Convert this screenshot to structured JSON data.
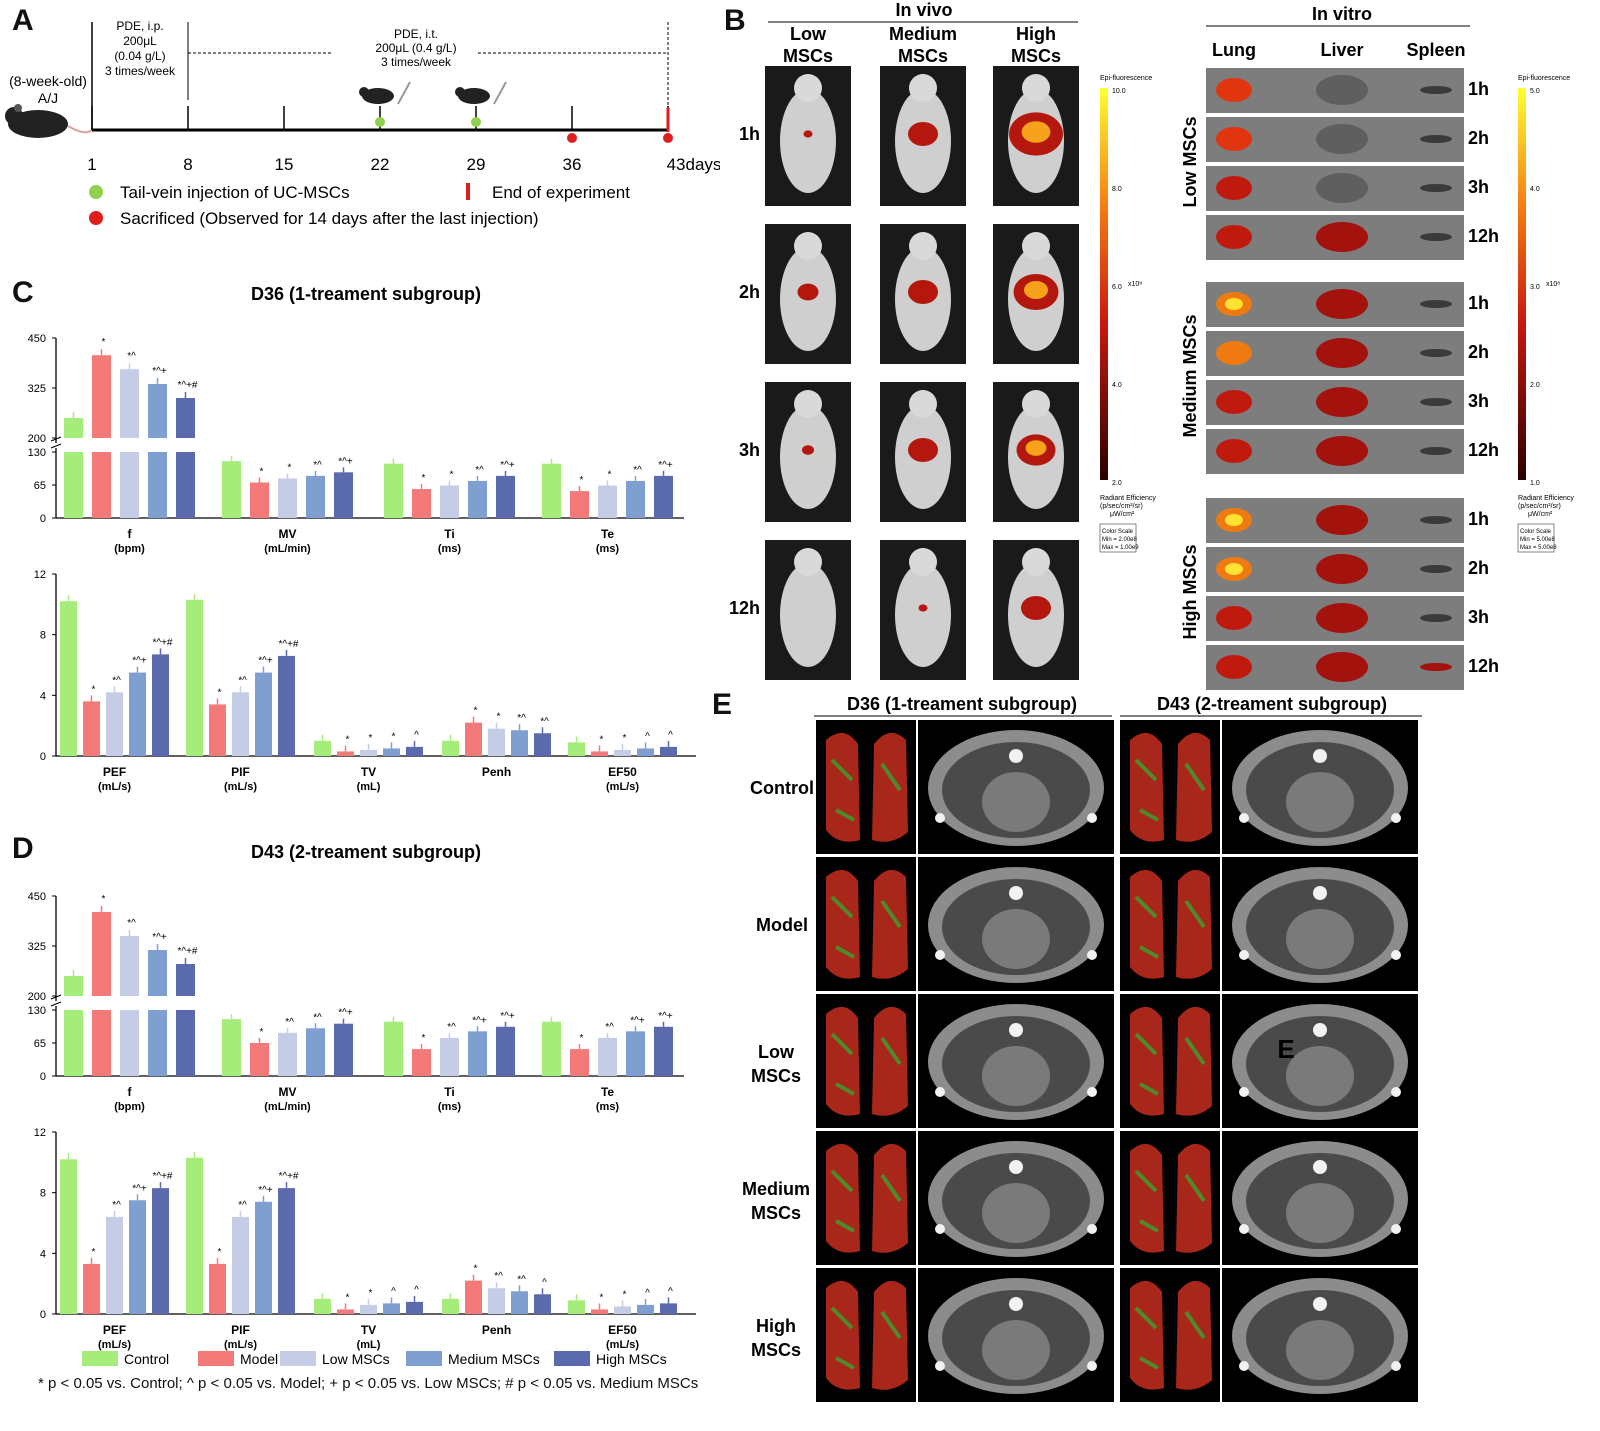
{
  "panels": {
    "a": "A",
    "b": "B",
    "c": "C",
    "d": "D",
    "e": "E"
  },
  "timeline": {
    "mouse_label_1": "(8-week-old)",
    "mouse_label_2": "A/J",
    "pde_ip_1": "PDE, i.p.",
    "pde_ip_2": "200μL",
    "pde_ip_3": "(0.04 g/L)",
    "pde_ip_4": "3 times/week",
    "pde_it_1": "PDE, i.t.",
    "pde_it_2": "200μL (0.4 g/L)",
    "pde_it_3": "3 times/week",
    "days": [
      "1",
      "8",
      "15",
      "22",
      "29",
      "36",
      "43"
    ],
    "days_suffix": "days",
    "legend_green": "Tail-vein injection of UC-MSCs",
    "legend_end": "End of experiment",
    "legend_red": "Sacrificed (Observed for 14 days after the last injection)"
  },
  "imaging": {
    "invivo_title": "In vivo",
    "invitro_title": "In vitro",
    "invivo_cols": [
      [
        "Low",
        "MSCs"
      ],
      [
        "Medium",
        "MSCs"
      ],
      [
        "High",
        "MSCs"
      ]
    ],
    "times": [
      "1h",
      "2h",
      "3h",
      "12h"
    ],
    "organs": [
      "Lung",
      "Liver",
      "Spleen"
    ],
    "groups": [
      "Low MSCs",
      "Medium MSCs",
      "High MSCs"
    ],
    "invivo_scale": {
      "title": "Epi-fluorescence",
      "ticks": [
        "10.0",
        "8.0",
        "6.0",
        "4.0",
        "2.0"
      ],
      "exp": "x10⁸",
      "unit_1": "Radiant Efficiency",
      "unit_2": "(p/sec/cm²/sr)",
      "unit_3": "μW/cm²",
      "box_1": "Color Scale",
      "box_2": "Min = 2.00e8",
      "box_3": "Max = 1.00e9"
    },
    "invitro_scale": {
      "title": "Epi-fluorescence",
      "ticks": [
        "5.0",
        "4.0",
        "3.0",
        "2.0",
        "1.0"
      ],
      "exp": "x10⁸",
      "unit_1": "Radiant Efficiency",
      "unit_2": "(p/sec/cm²/sr)",
      "unit_3": "μW/cm²",
      "box_1": "Color Scale",
      "box_2": "Min = 5.00e8",
      "box_3": "Max = 5.00e8"
    }
  },
  "ct": {
    "col_titles": [
      "D36 (1-treament subgroup)",
      "D43 (2-treament subgroup)"
    ],
    "rows": [
      [
        "Control"
      ],
      [
        "Model"
      ],
      [
        "Low",
        "MSCs"
      ],
      [
        "Medium",
        "MSCs"
      ],
      [
        "High",
        "MSCs"
      ]
    ],
    "overlay_letter": "E"
  },
  "legend": {
    "items": [
      "Control",
      "Model",
      "Low MSCs",
      "Medium MSCs",
      "High MSCs"
    ],
    "colors": [
      "#a6ec7a",
      "#f47a7a",
      "#c4cce6",
      "#7e9fd0",
      "#5b6aac"
    ],
    "note": "* p < 0.05 vs. Control; ^ p < 0.05 vs. Model; + p < 0.05 vs. Low MSCs; # p < 0.05 vs. Medium MSCs"
  },
  "chart_data": [
    {
      "type": "bar",
      "panel": "C",
      "title": "D36 (1-treament subgroup)",
      "part": "top",
      "series_names": [
        "Control",
        "Model",
        "Low MSCs",
        "Medium MSCs",
        "High MSCs"
      ],
      "y_break_ticks_upper": [
        "450",
        "325",
        "200"
      ],
      "y_ticks_lower": [
        "130",
        "65",
        "0"
      ],
      "groups": [
        {
          "label": "f",
          "unit": "(bpm)",
          "values": [
            250,
            407,
            372,
            335,
            300
          ],
          "sig": [
            "",
            "*",
            "*^",
            "*^+",
            "*^+#"
          ]
        },
        {
          "label": "MV",
          "unit": "(mL/min)",
          "values": [
            112,
            70,
            78,
            83,
            90
          ],
          "sig": [
            "",
            "*",
            "*",
            "*^",
            "*^+"
          ]
        },
        {
          "label": "Ti",
          "unit": "(ms)",
          "values": [
            107,
            57,
            64,
            73,
            83
          ],
          "sig": [
            "",
            "*",
            "*",
            "*^",
            "*^+"
          ]
        },
        {
          "label": "Te",
          "unit": "(ms)",
          "values": [
            107,
            53,
            64,
            73,
            83
          ],
          "sig": [
            "",
            "*",
            "*",
            "*^",
            "*^+"
          ]
        }
      ]
    },
    {
      "type": "bar",
      "panel": "C",
      "part": "bottom",
      "ylim": [
        0,
        12
      ],
      "y_ticks": [
        "12",
        "8",
        "4",
        "0"
      ],
      "groups": [
        {
          "label": "PEF",
          "unit": "(mL/s)",
          "values": [
            10.2,
            3.6,
            4.2,
            5.5,
            6.7
          ],
          "sig": [
            "",
            "*",
            "*^",
            "*^+",
            "*^+#"
          ]
        },
        {
          "label": "PIF",
          "unit": "(mL/s)",
          "values": [
            10.3,
            3.4,
            4.2,
            5.5,
            6.6
          ],
          "sig": [
            "",
            "*",
            "*^",
            "*^+",
            "*^+#"
          ]
        },
        {
          "label": "TV",
          "unit": "(mL)",
          "values": [
            1.0,
            0.3,
            0.4,
            0.5,
            0.6
          ],
          "sig": [
            "",
            "*",
            "*",
            "*",
            "^"
          ]
        },
        {
          "label": "Penh",
          "unit": "",
          "values": [
            1.0,
            2.2,
            1.8,
            1.7,
            1.5
          ],
          "sig": [
            "",
            "*",
            "*",
            "*^",
            "*^"
          ]
        },
        {
          "label": "EF50",
          "unit": "(mL/s)",
          "values": [
            0.9,
            0.3,
            0.4,
            0.5,
            0.6
          ],
          "sig": [
            "",
            "*",
            "*",
            "^",
            "^"
          ]
        }
      ]
    },
    {
      "type": "bar",
      "panel": "D",
      "title": "D43 (2-treament subgroup)",
      "part": "top",
      "y_break_ticks_upper": [
        "450",
        "325",
        "200"
      ],
      "y_ticks_lower": [
        "130",
        "65",
        "0"
      ],
      "groups": [
        {
          "label": "f",
          "unit": "(bpm)",
          "values": [
            250,
            410,
            350,
            315,
            280
          ],
          "sig": [
            "",
            "*",
            "*^",
            "*^+",
            "*^+#"
          ]
        },
        {
          "label": "MV",
          "unit": "(mL/min)",
          "values": [
            112,
            65,
            85,
            94,
            103
          ],
          "sig": [
            "",
            "*",
            "*^",
            "*^",
            "*^+"
          ]
        },
        {
          "label": "Ti",
          "unit": "(ms)",
          "values": [
            107,
            53,
            75,
            88,
            97
          ],
          "sig": [
            "",
            "*",
            "*^",
            "*^+",
            "*^+"
          ]
        },
        {
          "label": "Te",
          "unit": "(ms)",
          "values": [
            107,
            53,
            75,
            88,
            97
          ],
          "sig": [
            "",
            "*",
            "*^",
            "*^+",
            "*^+"
          ]
        }
      ]
    },
    {
      "type": "bar",
      "panel": "D",
      "part": "bottom",
      "ylim": [
        0,
        12
      ],
      "y_ticks": [
        "12",
        "8",
        "4",
        "0"
      ],
      "groups": [
        {
          "label": "PEF",
          "unit": "(mL/s)",
          "values": [
            10.2,
            3.3,
            6.4,
            7.5,
            8.3
          ],
          "sig": [
            "",
            "*",
            "*^",
            "*^+",
            "*^+#"
          ]
        },
        {
          "label": "PIF",
          "unit": "(mL/s)",
          "values": [
            10.3,
            3.3,
            6.4,
            7.4,
            8.3
          ],
          "sig": [
            "",
            "*",
            "*^",
            "*^+",
            "*^+#"
          ]
        },
        {
          "label": "TV",
          "unit": "(mL)",
          "values": [
            1.0,
            0.3,
            0.6,
            0.7,
            0.8
          ],
          "sig": [
            "",
            "*",
            "*",
            "^",
            "^"
          ]
        },
        {
          "label": "Penh",
          "unit": "",
          "values": [
            1.0,
            2.2,
            1.7,
            1.5,
            1.3
          ],
          "sig": [
            "",
            "*",
            "*^",
            "*^",
            "^"
          ]
        },
        {
          "label": "EF50",
          "unit": "(mL/s)",
          "values": [
            0.9,
            0.3,
            0.5,
            0.6,
            0.7
          ],
          "sig": [
            "",
            "*",
            "*",
            "^",
            "^"
          ]
        }
      ]
    }
  ]
}
